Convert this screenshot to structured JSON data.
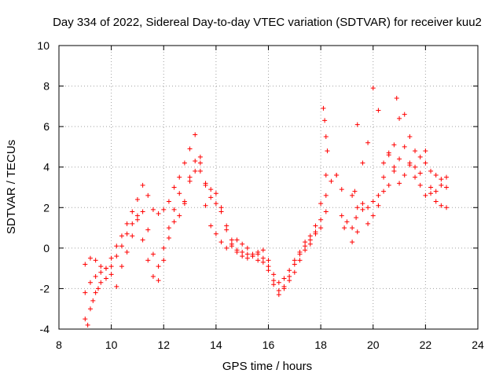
{
  "chart_data": {
    "type": "scatter",
    "title": "Day 334 of 2022, Sidereal Day-to-day VTEC variation (SDTVAR) for receiver kuu2",
    "xlabel": "GPS time / hours",
    "ylabel": "SDTVAR / TECUs",
    "xlim": [
      8,
      24
    ],
    "ylim": [
      -4,
      10
    ],
    "xticks": [
      "8",
      "10",
      "12",
      "14",
      "16",
      "18",
      "20",
      "22",
      "24"
    ],
    "yticks": [
      "-4",
      "-2",
      "0",
      "2",
      "4",
      "6",
      "8",
      "10"
    ],
    "grid": true,
    "marker": "+",
    "color": "#ff0000",
    "series": [
      {
        "name": "SDTVAR",
        "x": [
          9.0,
          9.2,
          9.4,
          9.6,
          9.8,
          10.0,
          10.2,
          10.4,
          10.6,
          10.8,
          11.0,
          11.2,
          11.4,
          11.6,
          11.8,
          12.0,
          12.2,
          12.4,
          12.6,
          12.8,
          13.0,
          13.2,
          13.4,
          13.6,
          13.8,
          14.0,
          14.2,
          14.4,
          14.6,
          14.8,
          15.0,
          15.2,
          15.4,
          15.6,
          15.8,
          16.0,
          16.2,
          16.4,
          16.6,
          16.8,
          17.0,
          17.2,
          17.4,
          17.6,
          17.8,
          18.0,
          18.2,
          18.4,
          18.6,
          18.8,
          19.0,
          19.2,
          19.4,
          19.6,
          19.8,
          20.0,
          20.2,
          20.4,
          20.6,
          20.8,
          21.0,
          21.2,
          21.4,
          21.6,
          21.8,
          22.0,
          22.2,
          22.4,
          22.6,
          22.8
        ],
        "y": [
          -0.8,
          -0.5,
          -0.6,
          -0.9,
          -1.0,
          -0.5,
          0.1,
          0.6,
          1.2,
          1.8,
          2.4,
          3.1,
          2.6,
          1.9,
          1.7,
          1.9,
          2.3,
          3.0,
          3.5,
          4.2,
          4.9,
          5.6,
          4.5,
          3.2,
          2.5,
          2.2,
          1.8,
          1.1,
          0.4,
          -0.1,
          -0.2,
          -0.3,
          -0.3,
          -0.2,
          -0.1,
          -0.6,
          -1.6,
          -2.1,
          -1.9,
          -1.4,
          -0.8,
          -0.3,
          0.3,
          0.6,
          1.1,
          2.2,
          3.6,
          3.3,
          3.6,
          1.6,
          1.3,
          2.6,
          6.1,
          4.2,
          5.2,
          7.9,
          6.8,
          4.2,
          4.7,
          5.1,
          6.4,
          6.6,
          5.5,
          4.8,
          4.5,
          4.2,
          3.8,
          3.6,
          3.4,
          3.5
        ]
      },
      {
        "name": "SDTVAR",
        "x": [
          9.0,
          9.2,
          9.4,
          9.6,
          9.8,
          10.0,
          10.2,
          10.4,
          10.6,
          10.8,
          11.0,
          11.2,
          11.4,
          11.6,
          11.8,
          12.0,
          12.2,
          12.4,
          12.6,
          12.8,
          13.0,
          13.2,
          13.4,
          13.6,
          13.8,
          14.0,
          14.2,
          14.4,
          14.6,
          14.8,
          15.0,
          15.2,
          15.4,
          15.6,
          15.8,
          16.0,
          16.2,
          16.4,
          16.6,
          16.8,
          17.0,
          17.2,
          17.4,
          17.6,
          17.8,
          18.0,
          18.2,
          19.2,
          19.4,
          19.6,
          19.8,
          20.0,
          20.2,
          20.4,
          20.6,
          20.8,
          21.0,
          21.2,
          21.4,
          21.6,
          21.8,
          22.0,
          22.2,
          22.4,
          22.6,
          22.8
        ],
        "y": [
          -2.2,
          -1.7,
          -1.4,
          -1.2,
          -1.0,
          -0.9,
          -0.4,
          0.1,
          0.7,
          1.2,
          1.6,
          0.4,
          -0.6,
          -1.4,
          -1.6,
          -0.6,
          0.5,
          1.3,
          1.6,
          2.2,
          3.3,
          4.3,
          3.8,
          3.1,
          2.9,
          2.7,
          2.0,
          0.9,
          0.2,
          -0.2,
          -0.4,
          -0.5,
          -0.4,
          -0.3,
          -0.5,
          -1.1,
          -1.8,
          -2.3,
          -2.0,
          -1.6,
          -1.2,
          -0.6,
          -0.1,
          0.2,
          0.7,
          1.4,
          2.6,
          1.0,
          0.8,
          2.2,
          2.0,
          2.3,
          2.6,
          3.5,
          4.6,
          3.8,
          3.2,
          3.6,
          4.1,
          3.5,
          3.1,
          2.6,
          3.0,
          2.8,
          3.1,
          3.0
        ]
      },
      {
        "name": "SDTVAR",
        "x": [
          9.0,
          9.1,
          9.2,
          9.3,
          9.4,
          9.5,
          9.6,
          9.8,
          10.0,
          10.2,
          10.4,
          10.6,
          10.8,
          11.0,
          11.2,
          11.4,
          11.6,
          11.8,
          12.0,
          12.2,
          12.4,
          12.6,
          12.8,
          13.0,
          13.2,
          13.4,
          13.6,
          13.8,
          14.0,
          14.2,
          14.4,
          14.6,
          14.8,
          15.0,
          15.2,
          15.4,
          15.6,
          15.8,
          16.0,
          16.2,
          16.4,
          16.6,
          16.8,
          17.0,
          17.2,
          17.4,
          17.6,
          17.8,
          18.0,
          18.2,
          19.2,
          19.4,
          19.6,
          19.8,
          20.0,
          20.2,
          20.4,
          20.6,
          20.8,
          21.0,
          21.2,
          21.4,
          21.6,
          21.8,
          22.0,
          22.2,
          22.4,
          22.6,
          22.8
        ],
        "y": [
          -3.5,
          -3.8,
          -3.0,
          -2.6,
          -2.2,
          -2.0,
          -1.7,
          -1.5,
          -1.3,
          -1.9,
          -0.9,
          -0.2,
          0.6,
          1.4,
          1.8,
          0.9,
          -0.3,
          -0.9,
          0.0,
          1.0,
          1.9,
          2.7,
          2.3,
          3.5,
          3.8,
          4.2,
          2.1,
          1.1,
          0.7,
          0.3,
          0.0,
          0.1,
          0.4,
          0.2,
          0.0,
          -0.4,
          -0.6,
          -0.7,
          -0.9,
          -1.3,
          -1.7,
          -1.5,
          -1.1,
          -0.6,
          -0.2,
          0.1,
          0.4,
          0.8,
          1.0,
          1.8,
          0.3,
          2.0,
          1.9,
          1.2,
          1.6,
          2.1,
          2.8,
          3.1,
          4.0,
          4.4,
          5.0,
          4.2,
          4.0,
          3.7,
          4.8,
          2.7,
          2.3,
          2.1,
          2.0
        ]
      },
      {
        "name": "SDTVAR",
        "x": [
          18.1,
          18.15,
          18.2,
          18.25,
          18.6,
          18.8,
          18.9,
          19.3,
          19.35,
          20.9
        ],
        "y": [
          6.9,
          6.3,
          5.5,
          4.8,
          3.6,
          2.9,
          1.0,
          2.8,
          1.5,
          7.4
        ]
      }
    ]
  }
}
